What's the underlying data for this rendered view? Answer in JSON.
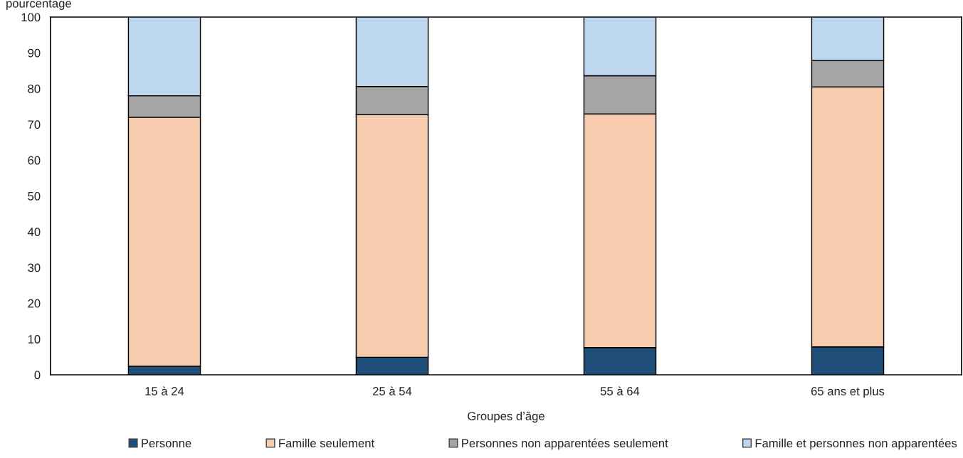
{
  "chart_data": {
    "type": "bar",
    "stacked": true,
    "categories": [
      "15 à 24",
      "25 à 54",
      "55 à 64",
      "65 ans et plus"
    ],
    "series": [
      {
        "name": "Personne",
        "color": "#1f4e79",
        "values": [
          2.4,
          4.9,
          7.6,
          7.8
        ]
      },
      {
        "name": "Famille seulement",
        "color": "#f7cbad",
        "values": [
          69.6,
          67.8,
          65.3,
          72.7
        ]
      },
      {
        "name": "Personnes non apparentées seulement",
        "color": "#a5a5a5",
        "values": [
          6.0,
          7.9,
          10.7,
          7.4
        ]
      },
      {
        "name": "Famille et personnes non apparentées",
        "color": "#bdd7ee",
        "values": [
          22.0,
          19.4,
          16.4,
          12.1
        ]
      }
    ],
    "xlabel": "Groupes d’âge",
    "ylabel": "pourcentage",
    "ylim": [
      0,
      100
    ],
    "yticks": [
      0,
      10,
      20,
      30,
      40,
      50,
      60,
      70,
      80,
      90,
      100
    ],
    "grid": false,
    "legend": "bottom"
  }
}
